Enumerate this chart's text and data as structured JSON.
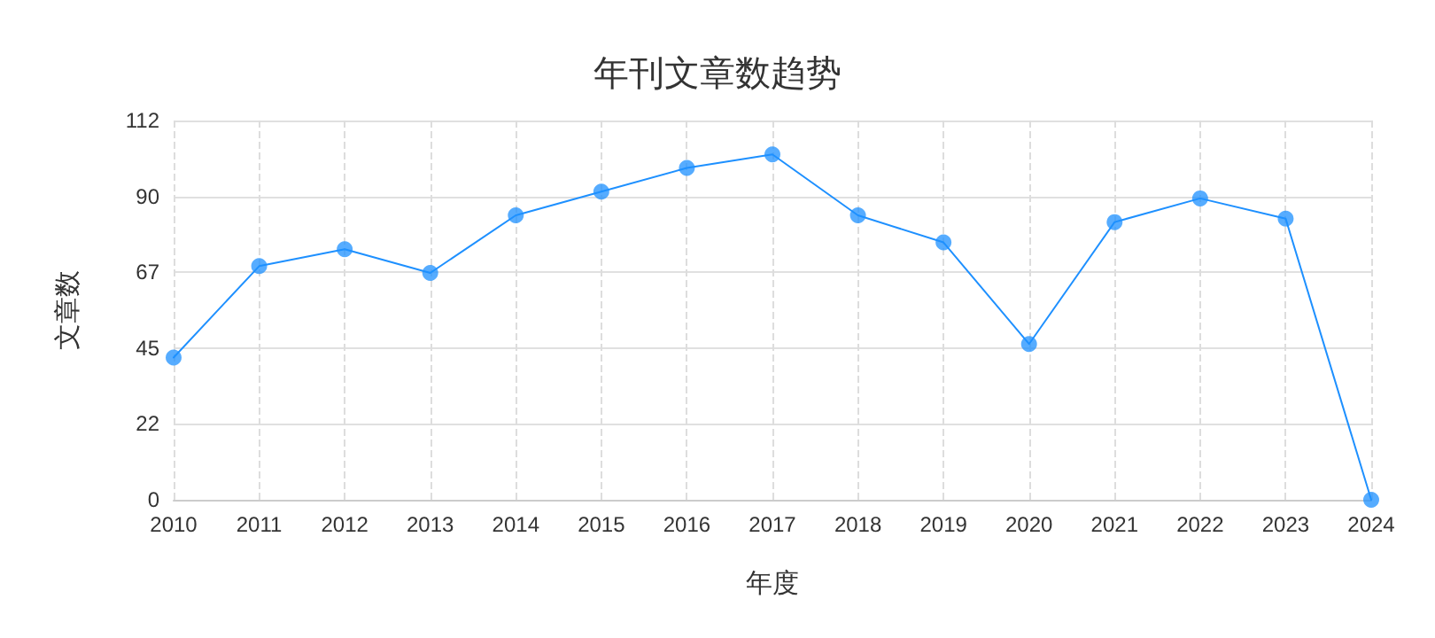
{
  "chart_data": {
    "type": "line",
    "title": "年刊文章数趋势",
    "xlabel": "年度",
    "ylabel": "文章数",
    "categories": [
      "2010",
      "2011",
      "2012",
      "2013",
      "2014",
      "2015",
      "2016",
      "2017",
      "2018",
      "2019",
      "2020",
      "2021",
      "2022",
      "2023",
      "2024"
    ],
    "series": [
      {
        "color": "#1e90ff",
        "values": [
          42,
          69,
          74,
          67,
          84,
          91,
          98,
          102,
          84,
          76,
          46,
          82,
          89,
          83,
          0
        ]
      }
    ],
    "ylim": [
      0,
      112
    ],
    "yticks": [
      0,
      {
        "value": 22.4,
        "label": "22"
      },
      {
        "value": 44.8,
        "label": "45"
      },
      {
        "value": 67.2,
        "label": "67"
      },
      {
        "value": 89.6,
        "label": "90"
      },
      112
    ],
    "grid": true,
    "marker": "circle",
    "line_style": "solid"
  }
}
